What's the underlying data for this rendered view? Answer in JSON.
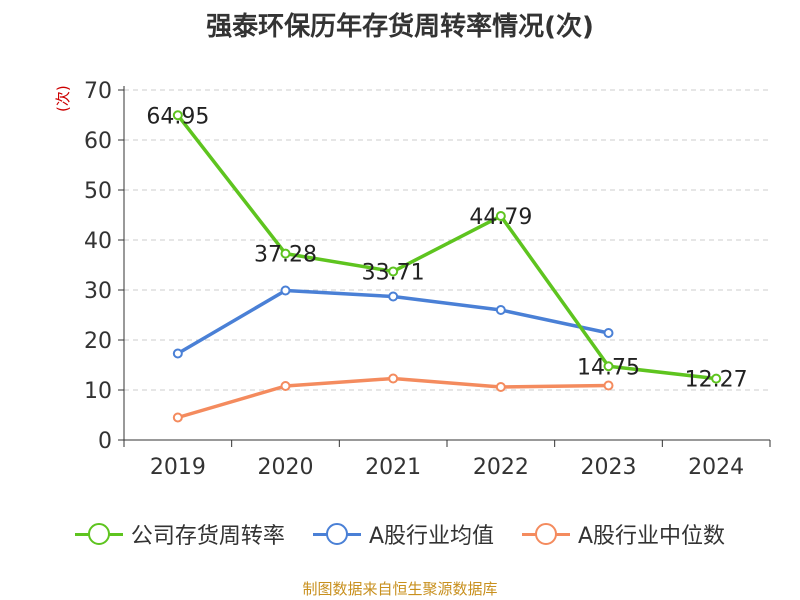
{
  "chart_data": {
    "type": "line",
    "title": "强泰环保历年存货周转率情况(次)",
    "ylabel": "(次)",
    "categories": [
      "2019",
      "2020",
      "2021",
      "2022",
      "2023",
      "2024"
    ],
    "ylim": [
      0,
      70
    ],
    "yticks": [
      0,
      10,
      20,
      30,
      40,
      50,
      60,
      70
    ],
    "grid": true,
    "legend_position": "bottom",
    "series": [
      {
        "name": "公司存货周转率",
        "color": "#5ec41f",
        "values": [
          64.95,
          37.28,
          33.71,
          44.79,
          14.75,
          12.27
        ],
        "labels": [
          "64.95",
          "37.28",
          "33.71",
          "44.79",
          "14.75",
          "12.27"
        ]
      },
      {
        "name": "A股行业均值",
        "color": "#4a80d6",
        "values": [
          17.3,
          29.9,
          28.7,
          26.0,
          21.4,
          null
        ]
      },
      {
        "name": "A股行业中位数",
        "color": "#f48b5e",
        "values": [
          4.5,
          10.8,
          12.3,
          10.6,
          10.9,
          null
        ]
      }
    ]
  },
  "source": "制图数据来自恒生聚源数据库"
}
